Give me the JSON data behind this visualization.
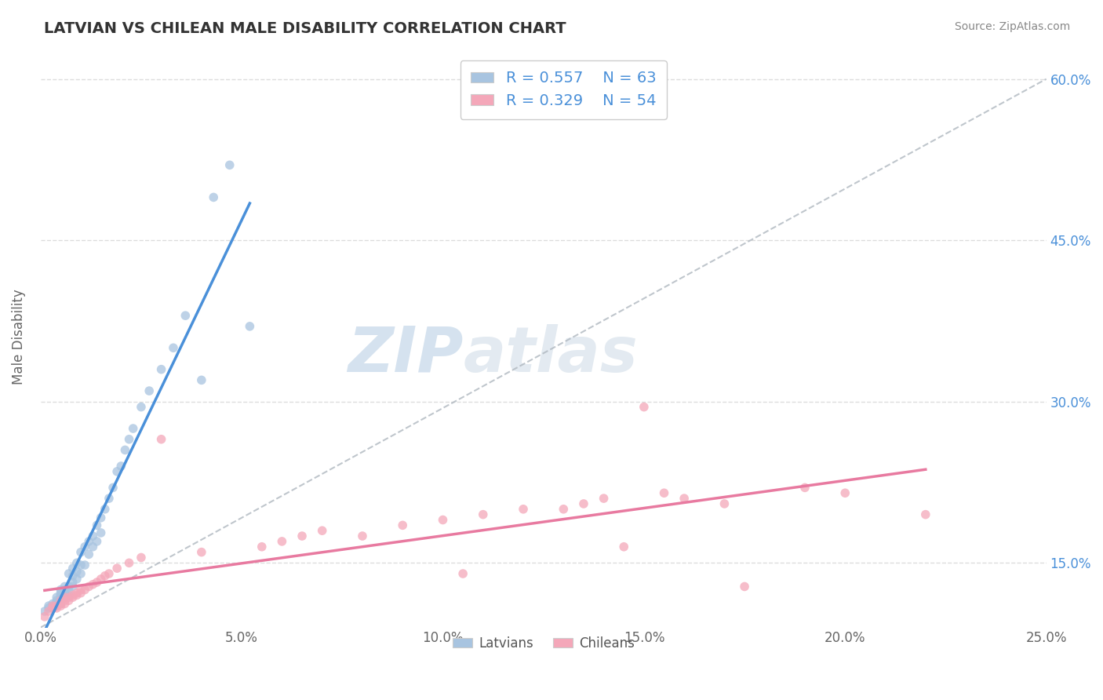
{
  "title": "LATVIAN VS CHILEAN MALE DISABILITY CORRELATION CHART",
  "source": "Source: ZipAtlas.com",
  "ylabel": "Male Disability",
  "xlim": [
    0.0,
    0.25
  ],
  "ylim": [
    0.09,
    0.63
  ],
  "xticks": [
    0.0,
    0.05,
    0.1,
    0.15,
    0.2,
    0.25
  ],
  "xtick_labels": [
    "0.0%",
    "5.0%",
    "10.0%",
    "15.0%",
    "20.0%",
    "25.0%"
  ],
  "yticks": [
    0.15,
    0.3,
    0.45,
    0.6
  ],
  "ytick_labels": [
    "15.0%",
    "30.0%",
    "45.0%",
    "60.0%"
  ],
  "latvian_color": "#a8c4e0",
  "chilean_color": "#f4a7b9",
  "latvian_line_color": "#4a90d9",
  "chilean_line_color": "#e87aa0",
  "R_latvian": 0.557,
  "N_latvian": 63,
  "R_chilean": 0.329,
  "N_chilean": 54,
  "background_color": "#ffffff",
  "grid_color": "#dddddd",
  "watermark_color": "#cdd8e8",
  "latvian_x": [
    0.001,
    0.002,
    0.002,
    0.003,
    0.003,
    0.003,
    0.004,
    0.004,
    0.004,
    0.004,
    0.004,
    0.005,
    0.005,
    0.005,
    0.005,
    0.005,
    0.005,
    0.006,
    0.006,
    0.006,
    0.006,
    0.006,
    0.007,
    0.007,
    0.007,
    0.007,
    0.008,
    0.008,
    0.008,
    0.008,
    0.009,
    0.009,
    0.009,
    0.01,
    0.01,
    0.01,
    0.011,
    0.011,
    0.012,
    0.012,
    0.013,
    0.013,
    0.014,
    0.014,
    0.015,
    0.015,
    0.016,
    0.017,
    0.018,
    0.019,
    0.02,
    0.021,
    0.022,
    0.023,
    0.025,
    0.027,
    0.03,
    0.033,
    0.036,
    0.04,
    0.043,
    0.047,
    0.052
  ],
  "latvian_y": [
    0.105,
    0.108,
    0.11,
    0.108,
    0.11,
    0.112,
    0.11,
    0.112,
    0.113,
    0.115,
    0.118,
    0.112,
    0.115,
    0.118,
    0.12,
    0.122,
    0.125,
    0.118,
    0.12,
    0.122,
    0.125,
    0.128,
    0.12,
    0.125,
    0.128,
    0.14,
    0.128,
    0.132,
    0.138,
    0.145,
    0.135,
    0.142,
    0.15,
    0.14,
    0.148,
    0.16,
    0.148,
    0.165,
    0.158,
    0.17,
    0.165,
    0.175,
    0.17,
    0.185,
    0.178,
    0.192,
    0.2,
    0.21,
    0.22,
    0.235,
    0.24,
    0.255,
    0.265,
    0.275,
    0.295,
    0.31,
    0.33,
    0.35,
    0.38,
    0.32,
    0.49,
    0.52,
    0.37
  ],
  "chilean_x": [
    0.001,
    0.002,
    0.003,
    0.003,
    0.004,
    0.004,
    0.005,
    0.005,
    0.005,
    0.006,
    0.006,
    0.006,
    0.007,
    0.007,
    0.008,
    0.008,
    0.009,
    0.009,
    0.01,
    0.01,
    0.011,
    0.012,
    0.013,
    0.014,
    0.015,
    0.016,
    0.017,
    0.019,
    0.022,
    0.025,
    0.03,
    0.04,
    0.055,
    0.06,
    0.065,
    0.07,
    0.08,
    0.09,
    0.1,
    0.105,
    0.11,
    0.12,
    0.13,
    0.135,
    0.14,
    0.145,
    0.15,
    0.155,
    0.16,
    0.17,
    0.175,
    0.19,
    0.2,
    0.22
  ],
  "chilean_y": [
    0.1,
    0.105,
    0.108,
    0.11,
    0.108,
    0.11,
    0.11,
    0.112,
    0.115,
    0.112,
    0.115,
    0.118,
    0.115,
    0.118,
    0.118,
    0.12,
    0.12,
    0.122,
    0.122,
    0.125,
    0.125,
    0.128,
    0.13,
    0.132,
    0.135,
    0.138,
    0.14,
    0.145,
    0.15,
    0.155,
    0.265,
    0.16,
    0.165,
    0.17,
    0.175,
    0.18,
    0.175,
    0.185,
    0.19,
    0.14,
    0.195,
    0.2,
    0.2,
    0.205,
    0.21,
    0.165,
    0.295,
    0.215,
    0.21,
    0.205,
    0.128,
    0.22,
    0.215,
    0.195
  ]
}
